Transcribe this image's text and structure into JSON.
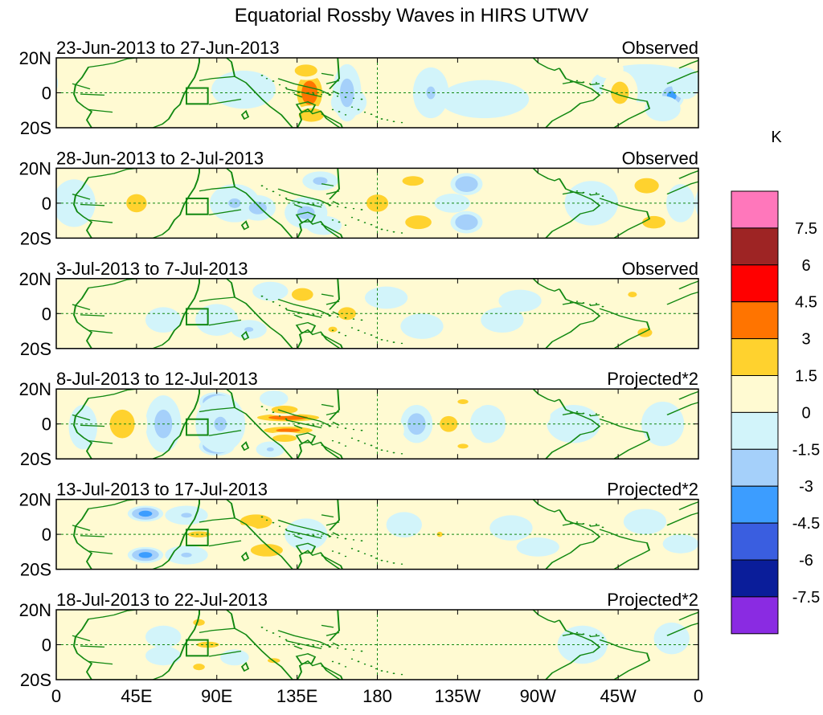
{
  "chart_data": {
    "type": "heatmap",
    "title": "Equatorial Rossby Waves in HIRS UTWV",
    "units": "K",
    "x_tick_labels": [
      "0",
      "45E",
      "90E",
      "135E",
      "180",
      "135W",
      "90W",
      "45W",
      "0"
    ],
    "y_tick_labels": [
      "20N",
      "0",
      "20S"
    ],
    "x_range": [
      0,
      360
    ],
    "y_range": [
      -22,
      22
    ],
    "reference_lines": {
      "equator_lat": 0,
      "dateline_lon": 180
    },
    "box_region": {
      "lon": [
        73,
        85
      ],
      "lat": [
        -7,
        3
      ]
    },
    "colorbar": {
      "labels": [
        "7.5",
        "6",
        "4.5",
        "3",
        "1.5",
        "0",
        "-1.5",
        "-3",
        "-4.5",
        "-6",
        "-7.5"
      ],
      "colors": [
        "#ff77bb",
        "#9e2424",
        "#ff0000",
        "#ff7400",
        "#ffd22e",
        "#fffad2",
        "#d2f4fa",
        "#a5d0fa",
        "#3c9dff",
        "#3a5ee0",
        "#0a1d9a",
        "#8a2be2"
      ]
    },
    "panels": [
      {
        "date_range": "23-Jun-2013 to 27-Jun-2013",
        "label": "Observed",
        "anomalies": [
          {
            "lon": 142,
            "lat": 0,
            "v": 4.0,
            "rx": 9,
            "ry": 15
          },
          {
            "lon": 140,
            "lat": 14,
            "v": 2.5,
            "rx": 10,
            "ry": 6
          },
          {
            "lon": 143,
            "lat": -14,
            "v": 3.0,
            "rx": 10,
            "ry": 6
          },
          {
            "lon": 173,
            "lat": 4,
            "v": 1.4,
            "rx": 8,
            "ry": 12
          },
          {
            "lon": 105,
            "lat": 2,
            "v": -1.2,
            "rx": 18,
            "ry": 12
          },
          {
            "lon": 164,
            "lat": -6,
            "v": -1.0,
            "rx": 10,
            "ry": 9
          },
          {
            "lon": 163,
            "lat": 0,
            "v": -2.0,
            "rx": 8,
            "ry": 18
          },
          {
            "lon": 185,
            "lat": 4,
            "v": 1.5,
            "rx": 8,
            "ry": 10
          },
          {
            "lon": 210,
            "lat": 0,
            "v": -1.6,
            "rx": 10,
            "ry": 16
          },
          {
            "lon": 240,
            "lat": -4,
            "v": -1.0,
            "rx": 25,
            "ry": 12
          },
          {
            "lon": 330,
            "lat": 6,
            "v": -1.0,
            "rx": 30,
            "ry": 12
          },
          {
            "lon": -15,
            "lat": -2,
            "v": -3.5,
            "rx": 7,
            "ry": 8
          },
          {
            "lon": -20,
            "lat": -10,
            "v": -1.3,
            "rx": 10,
            "ry": 8
          },
          {
            "lon": -7,
            "lat": 6,
            "v": -1.2,
            "rx": 8,
            "ry": 10
          },
          {
            "lon": -44,
            "lat": 0,
            "v": 2.0,
            "rx": 10,
            "ry": 14
          },
          {
            "lon": -50,
            "lat": 15,
            "v": 1.5,
            "rx": 8,
            "ry": 6
          },
          {
            "lon": -85,
            "lat": 8,
            "v": 1.0,
            "rx": 8,
            "ry": 8
          }
        ]
      },
      {
        "date_range": "28-Jun-2013 to 2-Jul-2013",
        "label": "Observed",
        "anomalies": [
          {
            "lon": -180,
            "lat": 0,
            "v": 2.8,
            "rx": 9,
            "ry": 8
          },
          {
            "lon": -157,
            "lat": -12,
            "v": 2.4,
            "rx": 12,
            "ry": 7
          },
          {
            "lon": -160,
            "lat": 14,
            "v": 2.0,
            "rx": 12,
            "ry": 6
          },
          {
            "lon": -130,
            "lat": 12,
            "v": -3.0,
            "rx": 9,
            "ry": 7
          },
          {
            "lon": -130,
            "lat": -12,
            "v": -3.0,
            "rx": 9,
            "ry": 7
          },
          {
            "lon": -138,
            "lat": 0,
            "v": -1.2,
            "rx": 10,
            "ry": 6
          },
          {
            "lon": -117,
            "lat": 0,
            "v": 1.0,
            "rx": 8,
            "ry": 10
          },
          {
            "lon": -60,
            "lat": 0,
            "v": -1.0,
            "rx": 15,
            "ry": 14
          },
          {
            "lon": -29,
            "lat": 11,
            "v": 2.8,
            "rx": 10,
            "ry": 7
          },
          {
            "lon": -25,
            "lat": -12,
            "v": 2.6,
            "rx": 10,
            "ry": 6
          },
          {
            "lon": -10,
            "lat": 0,
            "v": -1.0,
            "rx": 8,
            "ry": 12
          },
          {
            "lon": 10,
            "lat": 0,
            "v": -1.5,
            "rx": 12,
            "ry": 15
          },
          {
            "lon": 45,
            "lat": 0,
            "v": 1.8,
            "rx": 14,
            "ry": 14
          },
          {
            "lon": 100,
            "lat": 0,
            "v": -1.6,
            "rx": 14,
            "ry": 12
          },
          {
            "lon": 113,
            "lat": -3,
            "v": -2.0,
            "rx": 10,
            "ry": 8
          },
          {
            "lon": 140,
            "lat": -6,
            "v": -1.8,
            "rx": 12,
            "ry": 10
          },
          {
            "lon": 148,
            "lat": 14,
            "v": -1.8,
            "rx": 10,
            "ry": 6
          },
          {
            "lon": 150,
            "lat": -14,
            "v": -1.5,
            "rx": 10,
            "ry": 6
          }
        ]
      },
      {
        "date_range": "3-Jul-2013 to 7-Jul-2013",
        "label": "Observed",
        "anomalies": [
          {
            "lon": 163,
            "lat": 0,
            "v": 3.8,
            "rx": 6,
            "ry": 4
          },
          {
            "lon": 163,
            "lat": 0,
            "v": 2.0,
            "rx": 10,
            "ry": 8
          },
          {
            "lon": 138,
            "lat": 12,
            "v": 2.0,
            "rx": 12,
            "ry": 8
          },
          {
            "lon": 155,
            "lat": -10,
            "v": 1.6,
            "rx": 10,
            "ry": 7
          },
          {
            "lon": 180,
            "lat": -12,
            "v": 1.4,
            "rx": 10,
            "ry": 6
          },
          {
            "lon": -175,
            "lat": 10,
            "v": -1.5,
            "rx": 12,
            "ry": 7
          },
          {
            "lon": -155,
            "lat": -8,
            "v": -1.5,
            "rx": 12,
            "ry": 8
          },
          {
            "lon": -110,
            "lat": -4,
            "v": -1.2,
            "rx": 12,
            "ry": 8
          },
          {
            "lon": -100,
            "lat": 8,
            "v": -1.2,
            "rx": 12,
            "ry": 7
          },
          {
            "lon": -37,
            "lat": 12,
            "v": 1.6,
            "rx": 10,
            "ry": 7
          },
          {
            "lon": -30,
            "lat": -12,
            "v": 1.8,
            "rx": 10,
            "ry": 7
          },
          {
            "lon": -8,
            "lat": 0,
            "v": 1.2,
            "rx": 8,
            "ry": 10
          },
          {
            "lon": 120,
            "lat": 14,
            "v": -1.5,
            "rx": 10,
            "ry": 6
          },
          {
            "lon": 108,
            "lat": -10,
            "v": -1.6,
            "rx": 10,
            "ry": 6
          },
          {
            "lon": 90,
            "lat": -4,
            "v": -1.1,
            "rx": 12,
            "ry": 10
          },
          {
            "lon": 35,
            "lat": 4,
            "v": 1.2,
            "rx": 10,
            "ry": 10
          },
          {
            "lon": 60,
            "lat": -4,
            "v": -1.0,
            "rx": 10,
            "ry": 8
          }
        ]
      },
      {
        "date_range": "8-Jul-2013 to 12-Jul-2013",
        "label": "Projected*2",
        "anomalies": [
          {
            "lon": -140,
            "lat": 0,
            "v": 4.0,
            "rx": 6,
            "ry": 5
          },
          {
            "lon": -140,
            "lat": 0,
            "v": 2.0,
            "rx": 10,
            "ry": 10
          },
          {
            "lon": -158,
            "lat": 0,
            "v": -2.2,
            "rx": 9,
            "ry": 12
          },
          {
            "lon": -118,
            "lat": 0,
            "v": -1.3,
            "rx": 10,
            "ry": 12
          },
          {
            "lon": -132,
            "lat": 14,
            "v": 1.6,
            "rx": 12,
            "ry": 6
          },
          {
            "lon": -132,
            "lat": -14,
            "v": 1.6,
            "rx": 12,
            "ry": 6
          },
          {
            "lon": -20,
            "lat": 0,
            "v": -1.5,
            "rx": 12,
            "ry": 14
          },
          {
            "lon": -40,
            "lat": -8,
            "v": 1.3,
            "rx": 10,
            "ry": 6
          },
          {
            "lon": -45,
            "lat": 12,
            "v": 1.5,
            "rx": 10,
            "ry": 6
          },
          {
            "lon": -70,
            "lat": 0,
            "v": -1.2,
            "rx": 15,
            "ry": 12
          },
          {
            "lon": -95,
            "lat": 5,
            "v": 1.0,
            "rx": 12,
            "ry": 9
          },
          {
            "lon": -180,
            "lat": 6,
            "v": 1.4,
            "rx": 10,
            "ry": 9
          },
          {
            "lon": -175,
            "lat": -4,
            "v": 1.0,
            "rx": 10,
            "ry": 9
          },
          {
            "lon": 130,
            "lat": 4,
            "v": 4.0,
            "rx": 22,
            "ry": 3
          },
          {
            "lon": 130,
            "lat": -4,
            "v": 3.5,
            "rx": 18,
            "ry": 3
          },
          {
            "lon": 128,
            "lat": 9,
            "v": 2.4,
            "rx": 12,
            "ry": 4
          },
          {
            "lon": 128,
            "lat": -9,
            "v": 2.2,
            "rx": 12,
            "ry": 4
          },
          {
            "lon": 90,
            "lat": 14,
            "v": -4.0,
            "rx": 10,
            "ry": 6
          },
          {
            "lon": 90,
            "lat": -14,
            "v": -4.0,
            "rx": 10,
            "ry": 6
          },
          {
            "lon": 92,
            "lat": 0,
            "v": -1.6,
            "rx": 14,
            "ry": 18
          },
          {
            "lon": 60,
            "lat": 0,
            "v": -2.0,
            "rx": 10,
            "ry": 18
          },
          {
            "lon": 37,
            "lat": 6,
            "v": 4.0,
            "rx": 6,
            "ry": 4
          },
          {
            "lon": 37,
            "lat": -6,
            "v": 4.0,
            "rx": 6,
            "ry": 4
          },
          {
            "lon": 37,
            "lat": 0,
            "v": 2.0,
            "rx": 14,
            "ry": 18
          },
          {
            "lon": 15,
            "lat": -2,
            "v": -1.3,
            "rx": 8,
            "ry": 14
          },
          {
            "lon": 122,
            "lat": 16,
            "v": -1.5,
            "rx": 8,
            "ry": 5
          },
          {
            "lon": 120,
            "lat": -16,
            "v": -1.6,
            "rx": 8,
            "ry": 5
          }
        ]
      },
      {
        "date_range": "13-Jul-2013 to 17-Jul-2013",
        "label": "Projected*2",
        "anomalies": [
          {
            "lon": 112,
            "lat": 8,
            "v": 2.2,
            "rx": 16,
            "ry": 8
          },
          {
            "lon": 118,
            "lat": -10,
            "v": 2.2,
            "rx": 16,
            "ry": 7
          },
          {
            "lon": 103,
            "lat": 0,
            "v": 1.5,
            "rx": 12,
            "ry": 6
          },
          {
            "lon": 80,
            "lat": 0,
            "v": 2.5,
            "rx": 10,
            "ry": 3
          },
          {
            "lon": 73,
            "lat": 12,
            "v": -1.6,
            "rx": 12,
            "ry": 6
          },
          {
            "lon": 73,
            "lat": -13,
            "v": -1.6,
            "rx": 12,
            "ry": 6
          },
          {
            "lon": 50,
            "lat": 13,
            "v": -3.5,
            "rx": 10,
            "ry": 5
          },
          {
            "lon": 50,
            "lat": -13,
            "v": -3.5,
            "rx": 10,
            "ry": 5
          },
          {
            "lon": 47,
            "lat": 0,
            "v": 1.5,
            "rx": 10,
            "ry": 6
          },
          {
            "lon": 20,
            "lat": 10,
            "v": 1.3,
            "rx": 10,
            "ry": 6
          },
          {
            "lon": 20,
            "lat": -10,
            "v": 1.3,
            "rx": 10,
            "ry": 6
          },
          {
            "lon": 140,
            "lat": 0,
            "v": -1.2,
            "rx": 12,
            "ry": 10
          },
          {
            "lon": -145,
            "lat": 0,
            "v": 1.8,
            "rx": 4,
            "ry": 4
          },
          {
            "lon": -165,
            "lat": 6,
            "v": -1.0,
            "rx": 10,
            "ry": 8
          },
          {
            "lon": -105,
            "lat": 4,
            "v": -1.1,
            "rx": 12,
            "ry": 8
          },
          {
            "lon": -90,
            "lat": -8,
            "v": -1.0,
            "rx": 12,
            "ry": 6
          },
          {
            "lon": -30,
            "lat": 8,
            "v": -1.0,
            "rx": 12,
            "ry": 8
          },
          {
            "lon": -10,
            "lat": -6,
            "v": -1.0,
            "rx": 10,
            "ry": 6
          }
        ]
      },
      {
        "date_range": "18-Jul-2013 to 22-Jul-2013",
        "label": "Projected*2",
        "anomalies": [
          {
            "lon": 85,
            "lat": 0,
            "v": 2.5,
            "rx": 10,
            "ry": 3
          },
          {
            "lon": 80,
            "lat": 14,
            "v": 1.8,
            "rx": 8,
            "ry": 5
          },
          {
            "lon": 80,
            "lat": -14,
            "v": 1.8,
            "rx": 8,
            "ry": 5
          },
          {
            "lon": 120,
            "lat": 8,
            "v": 1.5,
            "rx": 14,
            "ry": 6
          },
          {
            "lon": 122,
            "lat": -10,
            "v": 1.6,
            "rx": 14,
            "ry": 6
          },
          {
            "lon": 60,
            "lat": 5,
            "v": -1.3,
            "rx": 10,
            "ry": 7
          },
          {
            "lon": 60,
            "lat": -7,
            "v": -1.5,
            "rx": 10,
            "ry": 6
          },
          {
            "lon": 100,
            "lat": -8,
            "v": -1.2,
            "rx": 8,
            "ry": 5
          },
          {
            "lon": 30,
            "lat": 0,
            "v": 1.0,
            "rx": 10,
            "ry": 10
          },
          {
            "lon": 145,
            "lat": 0,
            "v": 1.0,
            "rx": 10,
            "ry": 8
          },
          {
            "lon": -150,
            "lat": -4,
            "v": 1.0,
            "rx": 10,
            "ry": 8
          },
          {
            "lon": -125,
            "lat": 8,
            "v": 1.0,
            "rx": 10,
            "ry": 8
          },
          {
            "lon": -65,
            "lat": 0,
            "v": -1.0,
            "rx": 14,
            "ry": 12
          },
          {
            "lon": -15,
            "lat": 4,
            "v": -1.1,
            "rx": 10,
            "ry": 10
          }
        ]
      }
    ]
  }
}
